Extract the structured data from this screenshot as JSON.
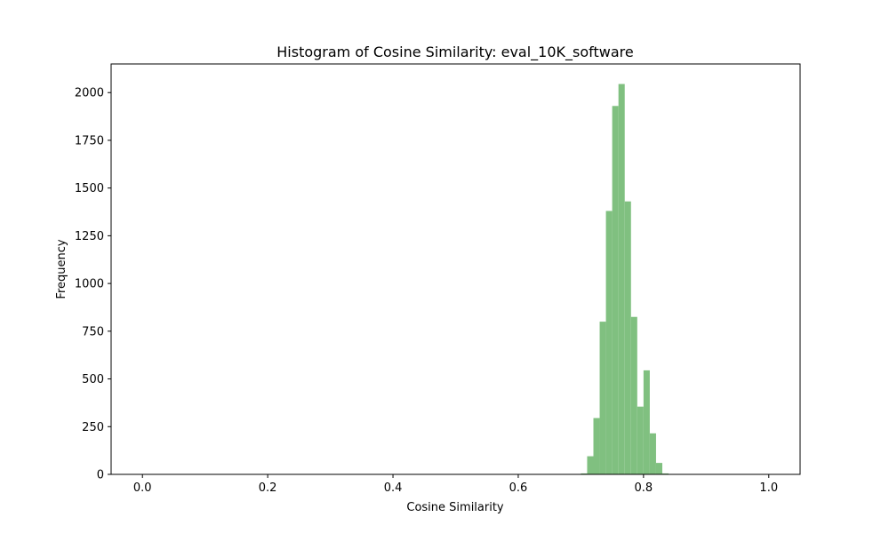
{
  "chart_data": {
    "type": "bar",
    "title": "Histogram of Cosine Similarity: eval_10K_software",
    "xlabel": "Cosine Similarity",
    "ylabel": "Frequency",
    "xlim": [
      -0.05,
      1.05
    ],
    "ylim": [
      0,
      2150
    ],
    "xticks": [
      0.0,
      0.2,
      0.4,
      0.6,
      0.8,
      1.0
    ],
    "xtick_labels": [
      "0.0",
      "0.2",
      "0.4",
      "0.6",
      "0.8",
      "1.0"
    ],
    "yticks": [
      0,
      250,
      500,
      750,
      1000,
      1250,
      1500,
      1750,
      2000
    ],
    "ytick_labels": [
      "0",
      "250",
      "500",
      "750",
      "1000",
      "1250",
      "1500",
      "1750",
      "2000"
    ],
    "bar_color": "#80c080",
    "bin_width": 0.01,
    "bins": [
      {
        "x0": 0.7,
        "x1": 0.71,
        "value": 5
      },
      {
        "x0": 0.71,
        "x1": 0.72,
        "value": 95
      },
      {
        "x0": 0.72,
        "x1": 0.73,
        "value": 295
      },
      {
        "x0": 0.73,
        "x1": 0.74,
        "value": 800
      },
      {
        "x0": 0.74,
        "x1": 0.75,
        "value": 1380
      },
      {
        "x0": 0.75,
        "x1": 0.76,
        "value": 1930
      },
      {
        "x0": 0.76,
        "x1": 0.77,
        "value": 2045
      },
      {
        "x0": 0.77,
        "x1": 0.78,
        "value": 1430
      },
      {
        "x0": 0.78,
        "x1": 0.79,
        "value": 825
      },
      {
        "x0": 0.79,
        "x1": 0.8,
        "value": 355
      },
      {
        "x0": 0.8,
        "x1": 0.81,
        "value": 545
      },
      {
        "x0": 0.81,
        "x1": 0.82,
        "value": 215
      },
      {
        "x0": 0.82,
        "x1": 0.83,
        "value": 60
      },
      {
        "x0": 0.83,
        "x1": 0.84,
        "value": 5
      }
    ]
  }
}
